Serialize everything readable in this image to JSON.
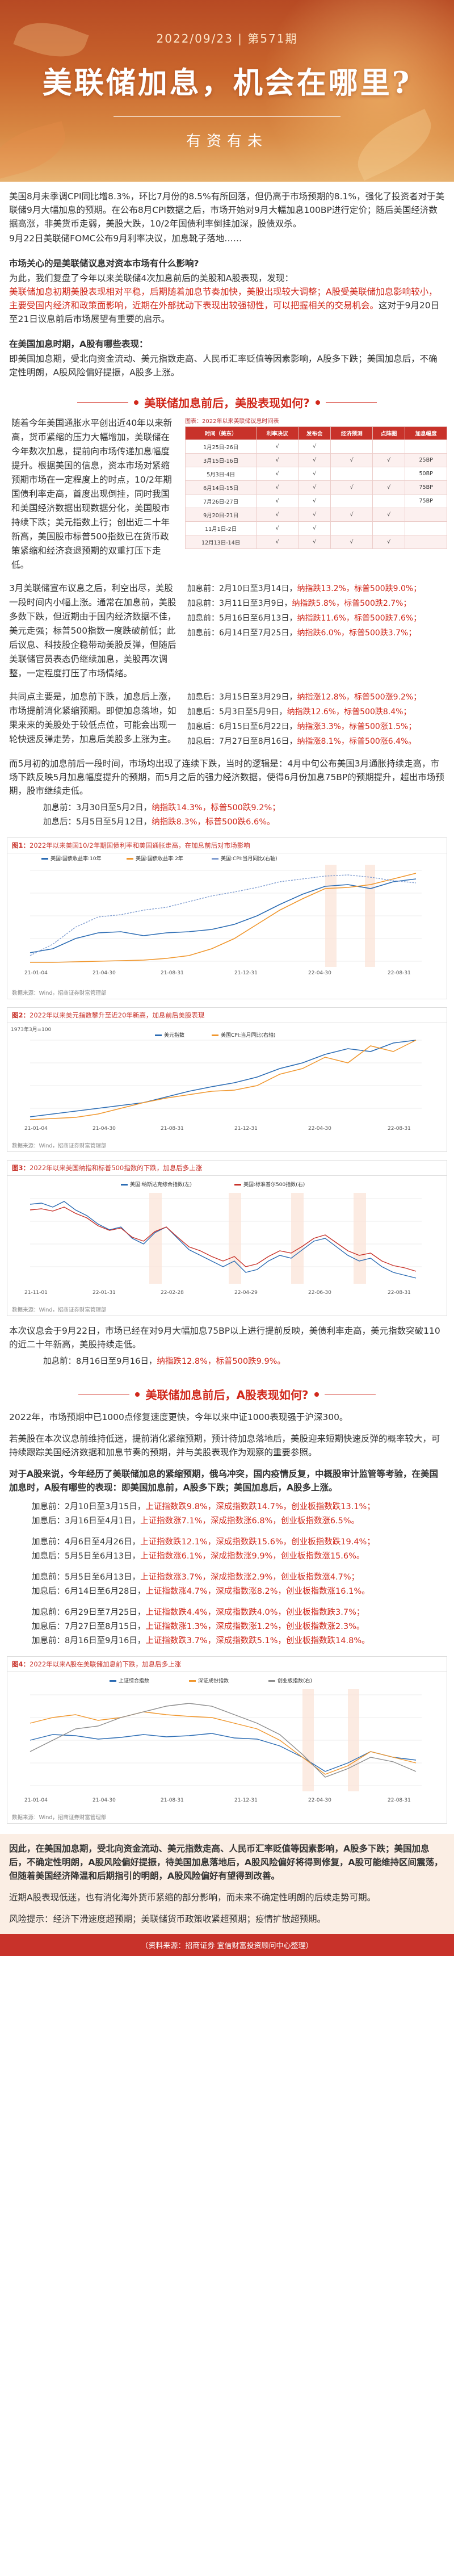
{
  "header": {
    "date": "2022/09/23",
    "issue": "第571期",
    "title": "美联储加息，机会在哪里?",
    "subtitle": "有资有未"
  },
  "intro": {
    "p1": "美国8月未季调CPI同比增8.3%，环比7月份的8.5%有所回落，但仍高于市场预期的8.1%，强化了投资者对于美联储9月大幅加息的预期。在公布8月CPI数据之后，市场开始对9月大幅加息100BP进行定价；随后美国经济数据高涨，非美货币走弱，美股大跌，10/2年国债利率倒挂加深，股债双杀。",
    "p2": "9月22日美联储FOMC公布9月利率决议，加息靴子落地……",
    "q1": "市场关心的是美联储议息对资本市场有什么影响?",
    "p3a": "为此，我们复盘了今年以来美联储4次加息前后的美股和A股表现，发现：",
    "p3b": "美联储加息初期美股表现相对平稳，后期随着加息节奏加快，美股出现较大调整；A股受美联储加息影响较小，主要受国内经济和政策面影响，近期在外部扰动下表现出较强韧性，可以把握相关的交易机会。",
    "p3c": "这对于9月20日至21日议息前后市场展望有重要的启示。",
    "q2": "在美国加息时期，A股有哪些表现：",
    "p4a": "即美国加息期，受北向资金流动、美元指数走高、人民币汇率贬值等因素影响，A股多下跌；美国加息后，",
    "p4b": "不确定性明朗，A股风险偏好提振，A股多上涨。"
  },
  "section1": {
    "heading": "美联储加息前后，美股表现如何?",
    "left_text": "随着今年美国通胀水平创出近40年以来新高，货币紧缩的压力大幅增加，美联储在今年数次加息，提前向市场传递加息幅度提升。根据美国的信息，资本市场对紧缩预期市场在一定程度上的时点，10/2年期国债利率走高，首度出现倒挂，同时我国和美国经济数据出现数据分化，美国股市持续下跌；美元指数上行；创出近二十年新高，美国股市标普500指数已在货币政策紧缩和经济衰退预期的双重打压下走低。",
    "table_caption": "图表：2022年以来美联储议息时间表",
    "table_headers": [
      "时间（美东）",
      "利率决议",
      "发布会",
      "经济预测",
      "点阵图",
      "加息幅度"
    ],
    "table_rows": [
      [
        "1月25日-26日",
        "√",
        "√",
        "",
        "",
        ""
      ],
      [
        "3月15日-16日",
        "√",
        "√",
        "√",
        "√",
        "25BP"
      ],
      [
        "5月3日-4日",
        "√",
        "√",
        "",
        "",
        "50BP"
      ],
      [
        "6月14日-15日",
        "√",
        "√",
        "√",
        "√",
        "75BP"
      ],
      [
        "7月26日-27日",
        "√",
        "√",
        "",
        "",
        "75BP"
      ],
      [
        "9月20日-21日",
        "√",
        "√",
        "√",
        "√",
        ""
      ],
      [
        "11月1日-2日",
        "√",
        "√",
        "",
        "",
        ""
      ],
      [
        "12月13日-14日",
        "√",
        "√",
        "√",
        "√",
        ""
      ]
    ],
    "pre_hike_text": "3月美联储宣布议息之后，利空出尽，美股一段时间内小幅上涨。通常在加息前，美股多数下跌，但近期由于国内经济数据不佳，美元走强；标普500指数一度跌破前低；此后议息、科技股企稳带动美股反弹，但随后美联储官员表态仍继续加息，美股再次调整，一定程度打压了市场情绪。",
    "pre_hike_stats": [
      {
        "label": "加息前：",
        "range": "2月10日至3月14日，",
        "n": "纳指跌13.2%，",
        "s": "标普500跌9.0%；"
      },
      {
        "label": "加息前：",
        "range": "3月11日至3月9日，",
        "n": "纳指跌5.8%，",
        "s": "标普500跌2.7%；"
      },
      {
        "label": "加息前：",
        "range": "5月16日至6月13日，",
        "n": "纳指跌11.6%，",
        "s": "标普500跌7.6%；"
      },
      {
        "label": "加息前：",
        "range": "6月14日至7月25日，",
        "n": "纳指跌6.0%，",
        "s": "标普500跌3.7%；"
      }
    ],
    "post_hike_text": "共同点主要是，加息前下跌，加息后上涨，市场提前消化紧缩预期。即便加息落地，如果来来的美股处于较低点位，可能会出现一轮快速反弹走势，加息后美股多上涨为主。",
    "post_hike_stats": [
      {
        "label": "加息后：",
        "range": "3月15日至3月29日，",
        "n": "纳指涨12.8%，",
        "s": "标普500涨9.2%；"
      },
      {
        "label": "加息后：",
        "range": "5月3日至5月9日，",
        "n": "纳指跌12.6%，",
        "s": "标普500跌8.4%；"
      },
      {
        "label": "加息后：",
        "range": "6月15日至6月22日，",
        "n": "纳指涨3.3%，",
        "s": "标普500涨1.5%；"
      },
      {
        "label": "加息后：",
        "range": "7月27日至8月16日，",
        "n": "纳指涨8.1%，",
        "s": "标普500涨6.4%。"
      }
    ],
    "mid_text": "而5月初的加息前后一段时间，市场均出现了连续下跌，当时的逻辑是：4月中旬公布美国3月通胀持续走高，市场下跌反映5月加息幅度提升的预期，而5月之后的强力经济数据，使得6月份加息75BP的预期提升，超出市场预期，股市继续走低。",
    "mid_stats": [
      {
        "label": "加息前：",
        "range": "3月30日至5月2日，",
        "n": "纳指跌14.3%，",
        "s": "标普500跌9.2%；"
      },
      {
        "label": "加息后：",
        "range": "5月5日至5月12日，",
        "n": "纳指跌8.3%，",
        "s": "标普500跌6.6%。"
      }
    ]
  },
  "fig1": {
    "id": "图1：",
    "title": "2022年以来美国10/2年期国债利率和美国通胀走高，在加息前后对市场影响",
    "src_note": "",
    "foot": "数据来源：Wind，招商证券财富管理部",
    "legend": [
      "美国:国债收益率:10年",
      "美国:国债收益率:2年",
      "美国:CPI:当月同比(右轴)"
    ],
    "x_ticks": [
      "21-01-04",
      "21-04-30",
      "21-08-31",
      "21-12-31",
      "22-04-30",
      "22-08-31"
    ]
  },
  "fig2": {
    "id": "图2：",
    "title": "2022年以来美元指数攀升至近20年新高，加息前后美股表现",
    "foot": "数据来源：Wind，招商证券财富管理部",
    "legend": [
      "美元指数",
      "美国CPI:当月同比(右轴)"
    ],
    "x_ticks": [
      "21-01-04",
      "21-04-30",
      "21-08-31",
      "21-12-31",
      "22-04-30",
      "22-08-31"
    ],
    "left_label": "1973年3月=100"
  },
  "fig3": {
    "id": "图3：",
    "title": "2022年以来美国纳指和标普500指数的下跌，加息后多上涨",
    "foot": "数据来源：Wind，招商证券财富管理部",
    "legend": [
      "美国:纳斯达克综合指数(左)",
      "美国:标准普尔500指数(右)"
    ],
    "x_ticks": [
      "21-11-01",
      "22-01-31",
      "22-02-28",
      "22-04-29",
      "22-06-30",
      "22-08-31"
    ]
  },
  "section1_end": {
    "p": "本次议息会于9月22日，市场已经在对9月大幅加息75BP以上进行提前反映，美债利率走高，美元指数突破110的近二十年新高，美股持续走低。",
    "stat": {
      "label": "加息前：",
      "range": "8月16日至9月16日，",
      "n": "纳指跌12.8%，",
      "s": "标普500跌9.9%。"
    }
  },
  "section2": {
    "heading": "美联储加息前后，A股表现如何?",
    "p1": "2022年，市场预期中已1000点修复速度更快，今年以来中证1000表现强于沪深300。",
    "p2": "若美股在本次议息前维持低迷，提前消化紧缩预期，预计待加息落地后，美股迎来短期快速反弹的概率较大，可持续跟踪美国经济数据和加息节奏的预期，并与美股表现作为观察的重要参照。",
    "q": "对于A股来说，今年经历了美联储加息的紧缩预期，俄乌冲突，国内疫情反复，中概股审计监管等考验，在美国加息时，A股有哪些的表现：即美国加息前，A股多下跌；美国加息后，A股多上涨。",
    "pre_stats": [
      {
        "label": "加息前：",
        "range": "2月10日至3月15日，",
        "a": "上证指数跌9.8%，",
        "b": "深成指数跌14.7%，",
        "c": "创业板指数跌13.1%；"
      },
      {
        "label": "加息后：",
        "range": "3月16日至4月1日，",
        "a": "上证指数涨7.1%，",
        "b": "深成指数涨6.8%，",
        "c": "创业板指数涨6.5%。"
      }
    ],
    "mid_stats": [
      {
        "label": "加息前：",
        "range": "4月6日至4月26日，",
        "a": "上证指数跌12.1%，",
        "b": "深成指数跌15.6%，",
        "c": "创业板指数跌19.4%；"
      },
      {
        "label": "加息后：",
        "range": "5月5日至6月13日，",
        "a": "上证指数涨6.1%，",
        "b": "深成指数涨9.9%，",
        "c": "创业板指数涨15.6%。"
      }
    ],
    "late_stats": [
      {
        "label": "加息前：",
        "range": "5月5日至6月13日，",
        "a": "上证指数涨3.7%，",
        "b": "深成指数涨2.9%，",
        "c": "创业板指数涨4.7%；"
      },
      {
        "label": "加息后：",
        "range": "6月14日至6月28日，",
        "a": "上证指数涨4.7%，",
        "b": "深成指数涨8.2%，",
        "c": "创业板指数涨16.1%。"
      }
    ],
    "q3_stats": [
      {
        "label": "加息前：",
        "range": "6月29日至7月25日，",
        "a": "上证指数跌4.4%，",
        "b": "深成指数跌4.0%，",
        "c": "创业板指数跌3.7%；"
      },
      {
        "label": "加息后：",
        "range": "7月27日至8月15日，",
        "a": "上证指数涨1.3%，",
        "b": "深成指数涨1.2%，",
        "c": "创业板指数涨2.3%。"
      },
      {
        "label": "加息前：",
        "range": "8月16日至9月16日，",
        "a": "上证指数跌3.7%，",
        "b": "深成指数跌5.1%，",
        "c": "创业板指数跌14.8%。"
      }
    ]
  },
  "fig4": {
    "id": "图4：",
    "title": "2022年以来A股在美联储加息前下跌，加息后多上涨",
    "foot": "数据来源：Wind，招商证券财富管理部",
    "legend": [
      "上证综合指数",
      "深证成份指数",
      "创业板指数(右)"
    ],
    "x_ticks": [
      "21-01-04",
      "21-04-30",
      "21-08-31",
      "21-12-31",
      "22-04-30",
      "22-08-31"
    ]
  },
  "conclusion": {
    "p1": "因此，在美国加息期，受北向资金流动、美元指数走高、人民币汇率贬值等因素影响，A股多下跌；美国加息后，不确定性明朗，A股风险偏好提振，待美国加息落地后，A股风险偏好将得到修复，A股可能维持区间震荡，但随着美国经济降温和后期指引的明朗，A股风险偏好有望得到改善。",
    "p2": "近期A股表现低迷，也有消化海外货币紧缩的部分影响，而未来不确定性明朗的后续走势可期。",
    "risk": "风险提示：经济下滑速度超预期；美联储货币政策收紧超预期；疫情扩散超预期。",
    "source": "（资料来源：招商证券  宜信财富投资顾问中心整理）"
  }
}
